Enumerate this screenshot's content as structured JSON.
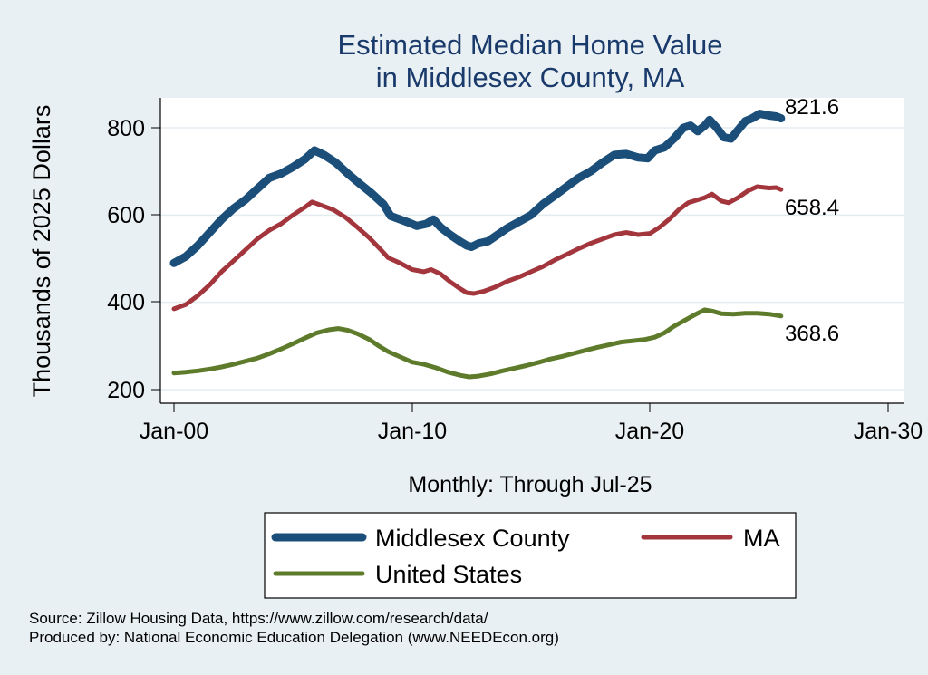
{
  "chart_data": {
    "type": "line",
    "title": [
      "Estimated Median Home Value",
      "in Middlesex County, MA"
    ],
    "xlabel": "Monthly: Through Jul-25",
    "ylabel": "Thousands of 2025 Dollars",
    "ylim": [
      190,
      870
    ],
    "xlim": [
      2000.0,
      2030.0
    ],
    "x_ticks": [
      "Jan-00",
      "Jan-10",
      "Jan-20",
      "Jan-30"
    ],
    "y_ticks": [
      "200",
      "400",
      "600",
      "800"
    ],
    "grid": true,
    "legend_position": "bottom",
    "series": [
      {
        "name": "Middlesex County",
        "color": "#1b4f7a",
        "end_label": "821.6",
        "points": [
          [
            2000.0,
            490
          ],
          [
            2000.5,
            505
          ],
          [
            2001.0,
            530
          ],
          [
            2001.5,
            560
          ],
          [
            2002.0,
            590
          ],
          [
            2002.5,
            615
          ],
          [
            2003.0,
            635
          ],
          [
            2003.5,
            660
          ],
          [
            2004.0,
            685
          ],
          [
            2004.5,
            695
          ],
          [
            2005.0,
            710
          ],
          [
            2005.5,
            728
          ],
          [
            2005.9,
            748
          ],
          [
            2006.3,
            738
          ],
          [
            2006.8,
            720
          ],
          [
            2007.3,
            695
          ],
          [
            2007.8,
            672
          ],
          [
            2008.3,
            650
          ],
          [
            2008.8,
            625
          ],
          [
            2009.1,
            598
          ],
          [
            2009.5,
            590
          ],
          [
            2009.9,
            582
          ],
          [
            2010.2,
            575
          ],
          [
            2010.6,
            580
          ],
          [
            2010.9,
            590
          ],
          [
            2011.2,
            572
          ],
          [
            2011.6,
            555
          ],
          [
            2012.0,
            540
          ],
          [
            2012.3,
            530
          ],
          [
            2012.5,
            527
          ],
          [
            2012.8,
            535
          ],
          [
            2013.2,
            540
          ],
          [
            2013.6,
            555
          ],
          [
            2014.0,
            570
          ],
          [
            2014.5,
            585
          ],
          [
            2015.0,
            600
          ],
          [
            2015.5,
            625
          ],
          [
            2016.0,
            645
          ],
          [
            2016.5,
            665
          ],
          [
            2017.0,
            685
          ],
          [
            2017.5,
            700
          ],
          [
            2018.0,
            720
          ],
          [
            2018.5,
            738
          ],
          [
            2019.0,
            740
          ],
          [
            2019.5,
            732
          ],
          [
            2019.9,
            730
          ],
          [
            2020.2,
            748
          ],
          [
            2020.6,
            755
          ],
          [
            2021.0,
            775
          ],
          [
            2021.4,
            800
          ],
          [
            2021.7,
            805
          ],
          [
            2022.0,
            792
          ],
          [
            2022.3,
            805
          ],
          [
            2022.5,
            818
          ],
          [
            2022.8,
            800
          ],
          [
            2023.1,
            778
          ],
          [
            2023.4,
            775
          ],
          [
            2023.7,
            795
          ],
          [
            2024.0,
            815
          ],
          [
            2024.3,
            822
          ],
          [
            2024.6,
            832
          ],
          [
            2025.0,
            828
          ],
          [
            2025.3,
            826
          ],
          [
            2025.5,
            821.6
          ]
        ]
      },
      {
        "name": "MA",
        "color": "#a3363d",
        "end_label": "658.4",
        "points": [
          [
            2000.0,
            385
          ],
          [
            2000.5,
            395
          ],
          [
            2001.0,
            415
          ],
          [
            2001.5,
            440
          ],
          [
            2002.0,
            470
          ],
          [
            2002.5,
            495
          ],
          [
            2003.0,
            520
          ],
          [
            2003.5,
            545
          ],
          [
            2004.0,
            565
          ],
          [
            2004.5,
            580
          ],
          [
            2005.0,
            600
          ],
          [
            2005.5,
            618
          ],
          [
            2005.8,
            630
          ],
          [
            2006.2,
            622
          ],
          [
            2006.7,
            612
          ],
          [
            2007.2,
            595
          ],
          [
            2007.7,
            572
          ],
          [
            2008.2,
            548
          ],
          [
            2008.7,
            520
          ],
          [
            2009.0,
            502
          ],
          [
            2009.5,
            490
          ],
          [
            2010.0,
            475
          ],
          [
            2010.5,
            470
          ],
          [
            2010.8,
            475
          ],
          [
            2011.2,
            465
          ],
          [
            2011.6,
            447
          ],
          [
            2012.0,
            432
          ],
          [
            2012.3,
            422
          ],
          [
            2012.6,
            420
          ],
          [
            2013.0,
            425
          ],
          [
            2013.5,
            435
          ],
          [
            2014.0,
            448
          ],
          [
            2014.5,
            458
          ],
          [
            2015.0,
            470
          ],
          [
            2015.5,
            482
          ],
          [
            2016.0,
            497
          ],
          [
            2016.5,
            510
          ],
          [
            2017.0,
            523
          ],
          [
            2017.5,
            535
          ],
          [
            2018.0,
            545
          ],
          [
            2018.5,
            555
          ],
          [
            2019.0,
            560
          ],
          [
            2019.5,
            555
          ],
          [
            2020.0,
            558
          ],
          [
            2020.4,
            572
          ],
          [
            2020.8,
            590
          ],
          [
            2021.2,
            612
          ],
          [
            2021.6,
            628
          ],
          [
            2022.0,
            635
          ],
          [
            2022.3,
            640
          ],
          [
            2022.6,
            648
          ],
          [
            2023.0,
            632
          ],
          [
            2023.3,
            628
          ],
          [
            2023.7,
            640
          ],
          [
            2024.1,
            655
          ],
          [
            2024.5,
            665
          ],
          [
            2025.0,
            662
          ],
          [
            2025.3,
            663
          ],
          [
            2025.5,
            658.4
          ]
        ]
      },
      {
        "name": "United States",
        "color": "#5d7b2a",
        "end_label": "368.6",
        "points": [
          [
            2000.0,
            238
          ],
          [
            2000.5,
            240
          ],
          [
            2001.0,
            243
          ],
          [
            2001.5,
            247
          ],
          [
            2002.0,
            252
          ],
          [
            2002.5,
            258
          ],
          [
            2003.0,
            265
          ],
          [
            2003.5,
            272
          ],
          [
            2004.0,
            282
          ],
          [
            2004.5,
            293
          ],
          [
            2005.0,
            305
          ],
          [
            2005.5,
            318
          ],
          [
            2006.0,
            330
          ],
          [
            2006.5,
            337
          ],
          [
            2006.9,
            340
          ],
          [
            2007.3,
            336
          ],
          [
            2007.7,
            328
          ],
          [
            2008.2,
            315
          ],
          [
            2008.6,
            300
          ],
          [
            2009.0,
            287
          ],
          [
            2009.5,
            275
          ],
          [
            2010.0,
            263
          ],
          [
            2010.5,
            258
          ],
          [
            2011.0,
            250
          ],
          [
            2011.5,
            240
          ],
          [
            2012.0,
            233
          ],
          [
            2012.4,
            229
          ],
          [
            2012.8,
            231
          ],
          [
            2013.3,
            236
          ],
          [
            2013.8,
            243
          ],
          [
            2014.3,
            249
          ],
          [
            2014.8,
            255
          ],
          [
            2015.3,
            262
          ],
          [
            2015.8,
            270
          ],
          [
            2016.3,
            276
          ],
          [
            2016.8,
            283
          ],
          [
            2017.3,
            290
          ],
          [
            2017.8,
            297
          ],
          [
            2018.3,
            303
          ],
          [
            2018.8,
            309
          ],
          [
            2019.3,
            312
          ],
          [
            2019.8,
            315
          ],
          [
            2020.2,
            320
          ],
          [
            2020.6,
            330
          ],
          [
            2021.0,
            345
          ],
          [
            2021.5,
            360
          ],
          [
            2022.0,
            375
          ],
          [
            2022.3,
            383
          ],
          [
            2022.6,
            380
          ],
          [
            2023.0,
            374
          ],
          [
            2023.5,
            373
          ],
          [
            2024.0,
            375
          ],
          [
            2024.5,
            375
          ],
          [
            2025.0,
            373
          ],
          [
            2025.5,
            368.6
          ]
        ]
      }
    ]
  },
  "footer": {
    "source": "Source: Zillow Housing Data, https://www.zillow.com/research/data/",
    "produced_by": "Produced by: National Economic Education Delegation (www.NEEDEcon.org)"
  }
}
